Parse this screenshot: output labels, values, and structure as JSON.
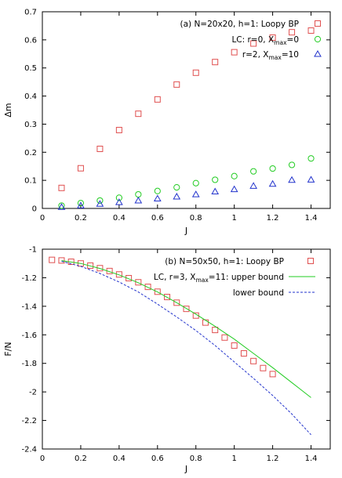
{
  "chart_data": [
    {
      "type": "scatter",
      "title": "",
      "xlabel": "J",
      "ylabel": "Δm",
      "xlim": [
        0,
        1.5
      ],
      "ylim": [
        0,
        0.7
      ],
      "xticks": [
        "0",
        "0.2",
        "0.4",
        "0.6",
        "0.8",
        "1",
        "1.2",
        "1.4"
      ],
      "yticks": [
        "0",
        "0.1",
        "0.2",
        "0.3",
        "0.4",
        "0.5",
        "0.6",
        "0.7"
      ],
      "legend_position": "top-left",
      "series": [
        {
          "name": "(a) N=20x20, h=1: Loopy BP",
          "marker": "square",
          "color": "#e05050",
          "x": [
            0.1,
            0.2,
            0.3,
            0.4,
            0.5,
            0.6,
            0.7,
            0.8,
            0.9,
            1.0,
            1.1,
            1.2,
            1.3,
            1.4
          ],
          "y": [
            0.073,
            0.143,
            0.212,
            0.279,
            0.337,
            0.388,
            0.441,
            0.483,
            0.521,
            0.556,
            0.587,
            0.608,
            0.627,
            0.633
          ]
        },
        {
          "name_parts": [
            "LC: r=0, X",
            "max",
            "=0"
          ],
          "marker": "circle",
          "color": "#22cc22",
          "x": [
            0.1,
            0.2,
            0.3,
            0.4,
            0.5,
            0.6,
            0.7,
            0.8,
            0.9,
            1.0,
            1.1,
            1.2,
            1.3,
            1.4
          ],
          "y": [
            0.01,
            0.019,
            0.028,
            0.038,
            0.05,
            0.062,
            0.075,
            0.09,
            0.102,
            0.115,
            0.132,
            0.142,
            0.155,
            0.178
          ]
        },
        {
          "name_parts": [
            "r=2, X",
            "max",
            "=10"
          ],
          "marker": "triangle",
          "color": "#2233cc",
          "x": [
            0.1,
            0.2,
            0.3,
            0.4,
            0.5,
            0.6,
            0.7,
            0.8,
            0.9,
            1.0,
            1.1,
            1.2,
            1.3,
            1.4
          ],
          "y": [
            0.005,
            0.01,
            0.016,
            0.022,
            0.028,
            0.035,
            0.042,
            0.05,
            0.06,
            0.068,
            0.08,
            0.087,
            0.101,
            0.102
          ]
        }
      ]
    },
    {
      "type": "line",
      "title": "",
      "xlabel": "J",
      "ylabel": "F/N",
      "xlim": [
        0,
        1.5
      ],
      "ylim": [
        -2.4,
        -1
      ],
      "xticks": [
        "0",
        "0.2",
        "0.4",
        "0.6",
        "0.8",
        "1",
        "1.2",
        "1.4"
      ],
      "yticks": [
        "-1",
        "-1.2",
        "-1.4",
        "-1.6",
        "-1.8",
        "-2",
        "-2.2",
        "-2.4"
      ],
      "legend_position": "top-right",
      "series": [
        {
          "name": "(b) N=50x50, h=1: Loopy BP",
          "marker": "square",
          "color": "#e05050",
          "x": [
            0.05,
            0.1,
            0.15,
            0.2,
            0.25,
            0.3,
            0.35,
            0.4,
            0.45,
            0.5,
            0.55,
            0.6,
            0.65,
            0.7,
            0.75,
            0.8,
            0.85,
            0.9,
            0.95,
            1.0,
            1.05,
            1.1,
            1.15,
            1.2
          ],
          "y": [
            -1.075,
            -1.079,
            -1.088,
            -1.1,
            -1.115,
            -1.133,
            -1.153,
            -1.177,
            -1.203,
            -1.232,
            -1.264,
            -1.298,
            -1.335,
            -1.375,
            -1.418,
            -1.465,
            -1.514,
            -1.566,
            -1.619,
            -1.675,
            -1.73,
            -1.784,
            -1.833,
            -1.875
          ]
        },
        {
          "name_parts": [
            "LC, r=3, X",
            "max",
            "=11: upper bound"
          ],
          "line": "solid",
          "color": "#22cc22",
          "x": [
            0.1,
            0.2,
            0.3,
            0.4,
            0.5,
            0.6,
            0.7,
            0.8,
            0.9,
            1.0,
            1.1,
            1.2,
            1.3,
            1.4
          ],
          "y": [
            -1.08,
            -1.1,
            -1.135,
            -1.18,
            -1.235,
            -1.3,
            -1.375,
            -1.455,
            -1.54,
            -1.63,
            -1.73,
            -1.83,
            -1.935,
            -2.04
          ]
        },
        {
          "name": "lower bound",
          "line": "dashed",
          "color": "#2233cc",
          "x": [
            0.1,
            0.2,
            0.3,
            0.4,
            0.5,
            0.6,
            0.7,
            0.8,
            0.9,
            1.0,
            1.1,
            1.2,
            1.3,
            1.4
          ],
          "y": [
            -1.085,
            -1.12,
            -1.17,
            -1.23,
            -1.3,
            -1.385,
            -1.475,
            -1.57,
            -1.675,
            -1.79,
            -1.905,
            -2.025,
            -2.155,
            -2.3
          ]
        }
      ]
    }
  ]
}
